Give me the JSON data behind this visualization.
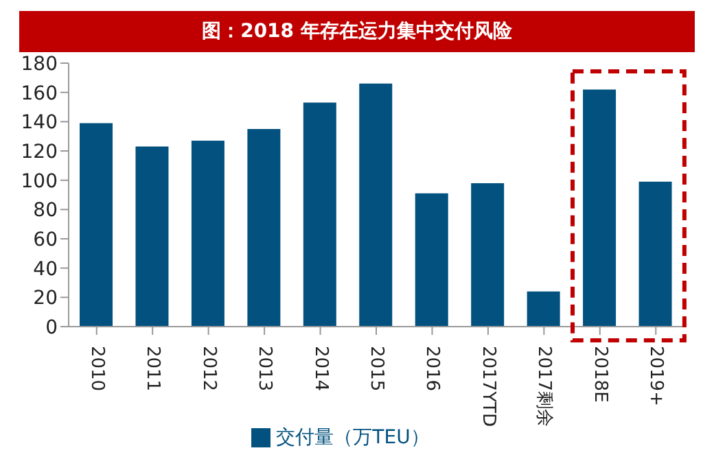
{
  "chart_data": {
    "type": "bar",
    "title": "图：2018 年存在运力集中交付风险",
    "categories": [
      "2010",
      "2011",
      "2012",
      "2013",
      "2014",
      "2015",
      "2016",
      "2017YTD",
      "2017剩余",
      "2018E",
      "2019+"
    ],
    "series": [
      {
        "name": "交付量（万TEU）",
        "color": "#02517f",
        "values": [
          139,
          123,
          127,
          135,
          153,
          166,
          91,
          98,
          24,
          162,
          99
        ]
      }
    ],
    "ylim": [
      0,
      180
    ],
    "yticks": [
      0,
      20,
      40,
      60,
      80,
      100,
      120,
      140,
      160,
      180
    ],
    "grid": false,
    "legend": "bottom"
  }
}
